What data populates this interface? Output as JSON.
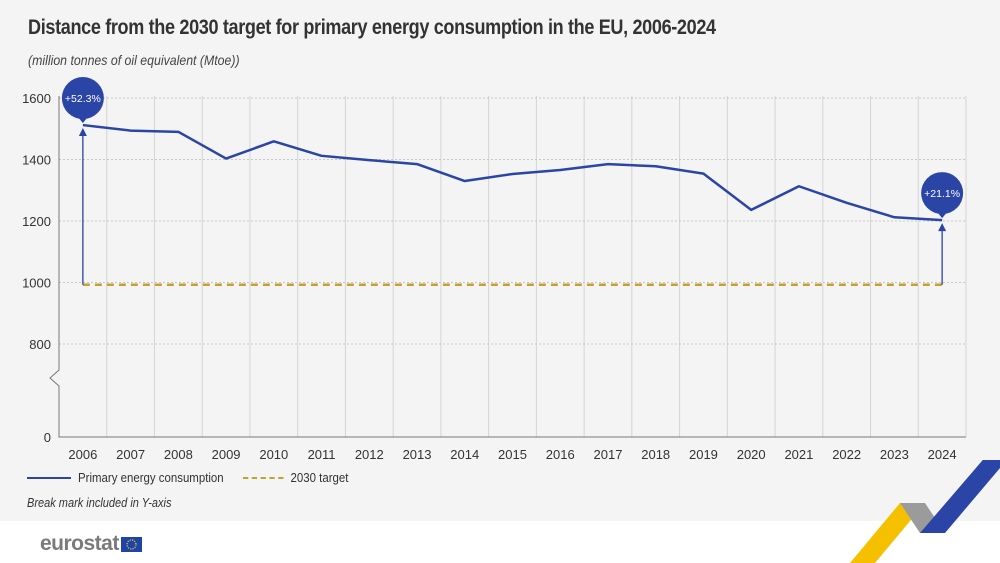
{
  "title": "Distance from the 2030 target for primary energy consumption in the EU, 2006-2024",
  "subtitle": "(million tonnes of oil equivalent (Mtoe))",
  "note": "Break mark included in Y-axis",
  "logo": "eurostat",
  "colors": {
    "consumption": "#2a45a5",
    "target": "#c3a32e",
    "background": "#f4f4f4"
  },
  "chart_data": {
    "type": "line",
    "x": [
      "2006",
      "2007",
      "2008",
      "2009",
      "2010",
      "2011",
      "2012",
      "2013",
      "2014",
      "2015",
      "2016",
      "2017",
      "2018",
      "2019",
      "2020",
      "2021",
      "2022",
      "2023",
      "2024"
    ],
    "series": [
      {
        "name": "Primary energy consumption",
        "values": [
          1512,
          1494,
          1490,
          1403,
          1459,
          1412,
          1398,
          1385,
          1330,
          1353,
          1366,
          1385,
          1378,
          1354,
          1236,
          1313,
          1259,
          1212,
          1203
        ]
      },
      {
        "name": "2030 target",
        "values": [
          992.5,
          992.5,
          992.5,
          992.5,
          992.5,
          992.5,
          992.5,
          992.5,
          992.5,
          992.5,
          992.5,
          992.5,
          992.5,
          992.5,
          992.5,
          992.5,
          992.5,
          992.5,
          992.5
        ],
        "style": "dashed"
      }
    ],
    "yticks": [
      "0",
      "800",
      "1000",
      "1200",
      "1400",
      "1600"
    ],
    "ylim": [
      800,
      1600
    ],
    "y_axis_break": true,
    "grid": true,
    "legend_position": "bottom-left",
    "annotations": [
      {
        "x": "2006",
        "label": "+52.3%"
      },
      {
        "x": "2024",
        "label": "+21.1%"
      }
    ]
  }
}
